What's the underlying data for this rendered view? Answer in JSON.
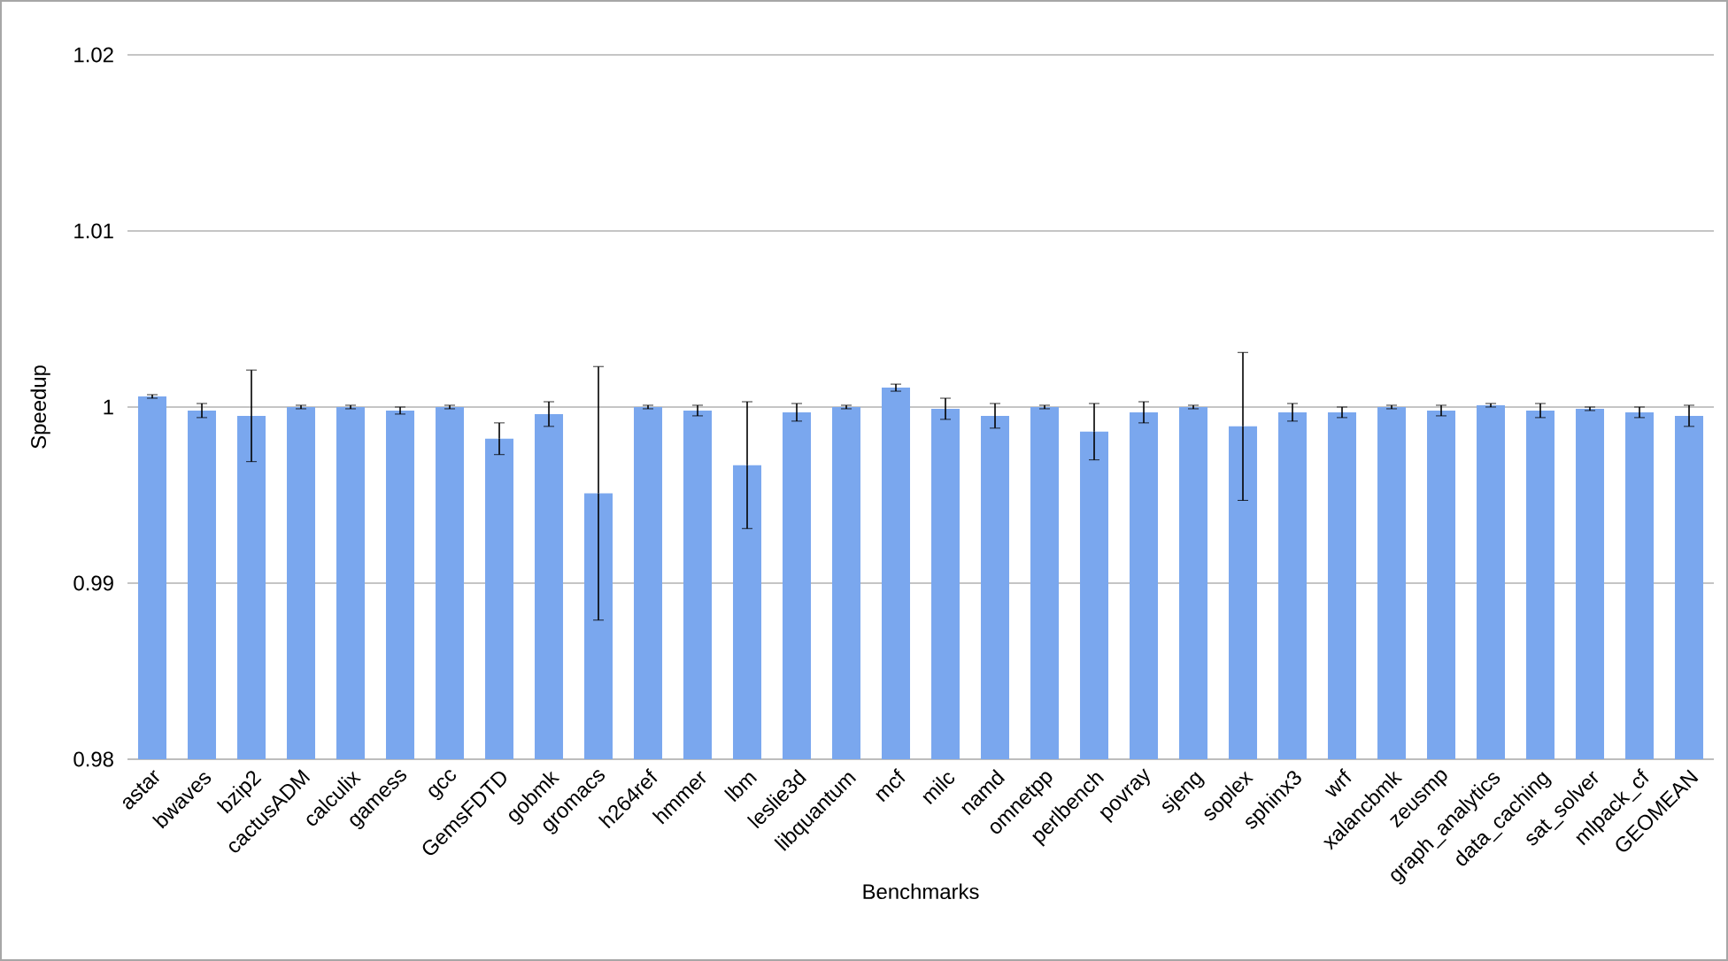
{
  "chart_data": {
    "type": "bar",
    "xlabel": "Benchmarks",
    "ylabel": "Speedup",
    "categories": [
      "astar",
      "bwaves",
      "bzip2",
      "cactusADM",
      "calculix",
      "gamess",
      "gcc",
      "GemsFDTD",
      "gobmk",
      "gromacs",
      "h264ref",
      "hmmer",
      "lbm",
      "leslie3d",
      "libquantum",
      "mcf",
      "milc",
      "namd",
      "omnetpp",
      "perlbench",
      "povray",
      "sjeng",
      "soplex",
      "sphinx3",
      "wrf",
      "xalancbmk",
      "zeusmp",
      "graph_analytics",
      "data_caching",
      "sat_solver",
      "mlpack_cf",
      "GEOMEAN"
    ],
    "values": [
      1.0006,
      0.9998,
      0.9995,
      1.0,
      1.0,
      0.9998,
      1.0,
      0.9982,
      0.9996,
      0.9951,
      1.0,
      0.9998,
      0.9967,
      0.9997,
      1.0,
      1.0011,
      0.9999,
      0.9995,
      1.0,
      0.9986,
      0.9997,
      1.0,
      0.9989,
      0.9997,
      0.9997,
      1.0,
      0.9998,
      1.0001,
      0.9998,
      0.9999,
      0.9997,
      0.9995
    ],
    "errors": [
      0.0001,
      0.0004,
      0.0026,
      0.0001,
      0.0001,
      0.0002,
      0.0001,
      0.0009,
      0.0007,
      0.0072,
      0.0001,
      0.0003,
      0.0036,
      0.0005,
      0.0001,
      0.0002,
      0.0006,
      0.0007,
      0.0001,
      0.0016,
      0.0006,
      0.0001,
      0.0042,
      0.0005,
      0.0003,
      0.0001,
      0.0003,
      0.0001,
      0.0004,
      0.0001,
      0.0003,
      0.0006
    ],
    "color": "#7aa7ee",
    "ylim": [
      0.98,
      1.02
    ],
    "yticks": [
      0.98,
      0.99,
      1,
      1.01,
      1.02
    ],
    "grid": "y"
  }
}
